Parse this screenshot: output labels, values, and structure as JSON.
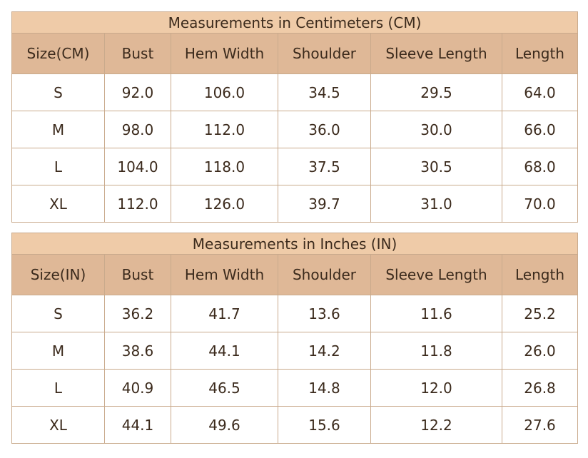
{
  "tables": [
    {
      "title": "Measurements in Centimeters (CM)",
      "header": [
        "Size(CM)",
        "Bust",
        "Hem Width",
        "Shoulder",
        "Sleeve Length",
        "Length"
      ],
      "rows": [
        [
          "S",
          "92.0",
          "106.0",
          "34.5",
          "29.5",
          "64.0"
        ],
        [
          "M",
          "98.0",
          "112.0",
          "36.0",
          "30.0",
          "66.0"
        ],
        [
          "L",
          "104.0",
          "118.0",
          "37.5",
          "30.5",
          "68.0"
        ],
        [
          "XL",
          "112.0",
          "126.0",
          "39.7",
          "31.0",
          "70.0"
        ]
      ]
    },
    {
      "title": "Measurements in Inches (IN)",
      "header": [
        "Size(IN)",
        "Bust",
        "Hem Width",
        "Shoulder",
        "Sleeve Length",
        "Length"
      ],
      "rows": [
        [
          "S",
          "36.2",
          "41.7",
          "13.6",
          "11.6",
          "25.2"
        ],
        [
          "M",
          "38.6",
          "44.1",
          "14.2",
          "11.8",
          "26.0"
        ],
        [
          "L",
          "40.9",
          "46.5",
          "14.8",
          "12.0",
          "26.8"
        ],
        [
          "XL",
          "44.1",
          "49.6",
          "15.6",
          "12.2",
          "27.6"
        ]
      ]
    }
  ]
}
